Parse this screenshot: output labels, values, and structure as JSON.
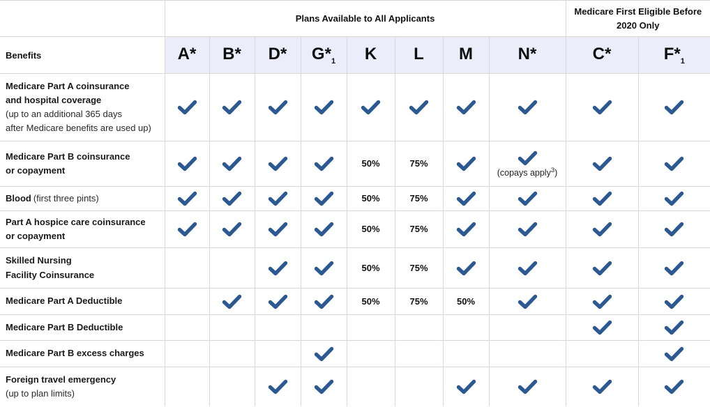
{
  "colors": {
    "check_blue": "#2b5994",
    "header_bg": "#ebeefa",
    "border": "#d9d8d1",
    "text": "#1a1a1a"
  },
  "table": {
    "group_headers": [
      {
        "label": "Plans Available to All Applicants",
        "span": 8
      },
      {
        "label": "Medicare First Eligible Before\n2020 Only",
        "span": 2
      }
    ],
    "benefits_header": "Benefits",
    "columns": [
      {
        "id": "A",
        "text": "A*",
        "sub": ""
      },
      {
        "id": "B",
        "text": "B*",
        "sub": ""
      },
      {
        "id": "D",
        "text": "D*",
        "sub": ""
      },
      {
        "id": "G",
        "text": "G*",
        "sub": "1"
      },
      {
        "id": "K",
        "text": "K",
        "sub": ""
      },
      {
        "id": "L",
        "text": "L",
        "sub": ""
      },
      {
        "id": "M",
        "text": "M",
        "sub": ""
      },
      {
        "id": "N",
        "text": "N*",
        "sub": ""
      },
      {
        "id": "C",
        "text": "C*",
        "sub": ""
      },
      {
        "id": "F",
        "text": "F*",
        "sub": "1"
      }
    ],
    "copays_note": {
      "prefix": "(copays apply",
      "sup": "3",
      "suffix": ")"
    },
    "rows": [
      {
        "id": "part-a-coinsurance",
        "bold": "Medicare Part A coinsurance\nand hospital coverage",
        "note": "(up to an additional 365 days\nafter Medicare benefits are used up)",
        "note_inline": false,
        "cells": [
          "check",
          "check",
          "check",
          "check",
          "check",
          "check",
          "check",
          "check",
          "check",
          "check"
        ]
      },
      {
        "id": "part-b-coinsurance",
        "bold": "Medicare Part B coinsurance\nor copayment",
        "note": "",
        "note_inline": false,
        "cells": [
          "check",
          "check",
          "check",
          "check",
          "50%",
          "75%",
          "check",
          "check_copays",
          "check",
          "check"
        ]
      },
      {
        "id": "blood",
        "bold": "Blood",
        "note": "(first three pints)",
        "note_inline": true,
        "cells": [
          "check",
          "check",
          "check",
          "check",
          "50%",
          "75%",
          "check",
          "check",
          "check",
          "check"
        ]
      },
      {
        "id": "part-a-hospice",
        "bold": "Part A hospice care coinsurance\nor copayment",
        "note": "",
        "note_inline": false,
        "cells": [
          "check",
          "check",
          "check",
          "check",
          "50%",
          "75%",
          "check",
          "check",
          "check",
          "check"
        ]
      },
      {
        "id": "skilled-nursing",
        "bold": "Skilled Nursing\nFacility Coinsurance",
        "note": "",
        "note_inline": false,
        "cells": [
          "",
          "",
          "check",
          "check",
          "50%",
          "75%",
          "check",
          "check",
          "check",
          "check"
        ]
      },
      {
        "id": "part-a-deductible",
        "bold": "Medicare Part A Deductible",
        "note": "",
        "note_inline": false,
        "cells": [
          "",
          "check",
          "check",
          "check",
          "50%",
          "75%",
          "50%",
          "check",
          "check",
          "check"
        ]
      },
      {
        "id": "part-b-deductible",
        "bold": "Medicare Part B Deductible",
        "note": "",
        "note_inline": false,
        "cells": [
          "",
          "",
          "",
          "",
          "",
          "",
          "",
          "",
          "check",
          "check"
        ]
      },
      {
        "id": "part-b-excess-charges",
        "bold": "Medicare Part B excess charges",
        "note": "",
        "note_inline": false,
        "cells": [
          "",
          "",
          "",
          "check",
          "",
          "",
          "",
          "",
          "",
          "check"
        ]
      },
      {
        "id": "foreign-travel-emergency",
        "bold": "Foreign travel emergency",
        "note": "(up to plan limits)",
        "note_inline": false,
        "cells": [
          "",
          "",
          "check",
          "check",
          "",
          "",
          "check",
          "check",
          "check",
          "check"
        ]
      }
    ]
  },
  "chart_data": {
    "type": "table",
    "column_groups": [
      {
        "label": "Plans Available to All Applicants",
        "columns": [
          "A*",
          "B*",
          "D*",
          "G*1",
          "K",
          "L",
          "M",
          "N*"
        ]
      },
      {
        "label": "Medicare First Eligible Before 2020 Only",
        "columns": [
          "C*",
          "F*1"
        ]
      }
    ],
    "columns": [
      "Benefits",
      "A*",
      "B*",
      "D*",
      "G*1",
      "K",
      "L",
      "M",
      "N*",
      "C*",
      "F*1"
    ],
    "rows": [
      [
        "Medicare Part A coinsurance and hospital coverage (up to an additional 365 days after Medicare benefits are used up)",
        "✓",
        "✓",
        "✓",
        "✓",
        "✓",
        "✓",
        "✓",
        "✓",
        "✓",
        "✓"
      ],
      [
        "Medicare Part B coinsurance or copayment",
        "✓",
        "✓",
        "✓",
        "✓",
        "50%",
        "75%",
        "✓",
        "✓ (copays apply3)",
        "✓",
        "✓"
      ],
      [
        "Blood (first three pints)",
        "✓",
        "✓",
        "✓",
        "✓",
        "50%",
        "75%",
        "✓",
        "✓",
        "✓",
        "✓"
      ],
      [
        "Part A hospice care coinsurance or copayment",
        "✓",
        "✓",
        "✓",
        "✓",
        "50%",
        "75%",
        "✓",
        "✓",
        "✓",
        "✓"
      ],
      [
        "Skilled Nursing Facility Coinsurance",
        "",
        "",
        "✓",
        "✓",
        "50%",
        "75%",
        "✓",
        "✓",
        "✓",
        "✓"
      ],
      [
        "Medicare Part A Deductible",
        "",
        "✓",
        "✓",
        "✓",
        "50%",
        "75%",
        "50%",
        "✓",
        "✓",
        "✓"
      ],
      [
        "Medicare Part B Deductible",
        "",
        "",
        "",
        "",
        "",
        "",
        "",
        "",
        "✓",
        "✓"
      ],
      [
        "Medicare Part B excess charges",
        "",
        "",
        "",
        "✓",
        "",
        "",
        "",
        "",
        "",
        "✓"
      ],
      [
        "Foreign travel emergency (up to plan limits)",
        "",
        "",
        "✓",
        "✓",
        "",
        "",
        "✓",
        "✓",
        "✓",
        "✓"
      ]
    ]
  }
}
